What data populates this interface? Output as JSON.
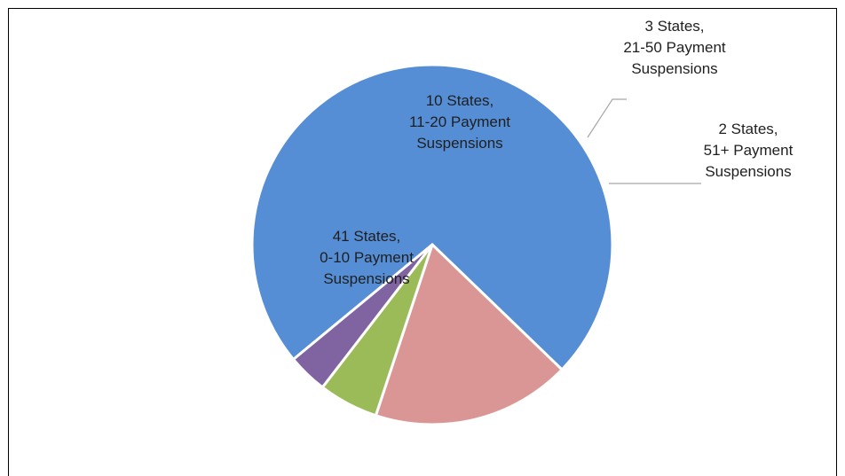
{
  "chart_data": {
    "type": "pie",
    "title": "",
    "slices": [
      {
        "label_lines": [
          "41 States,",
          "0-10 Payment",
          "Suspensions"
        ],
        "value": 41,
        "color": "#558ED5"
      },
      {
        "label_lines": [
          "10 States,",
          "11-20 Payment",
          "Suspensions"
        ],
        "value": 10,
        "color": "#D99694"
      },
      {
        "label_lines": [
          "3 States,",
          "21-50 Payment",
          "Suspensions"
        ],
        "value": 3,
        "color": "#9BBB59"
      },
      {
        "label_lines": [
          "2 States,",
          "51+ Payment",
          "Suspensions"
        ],
        "value": 2,
        "color": "#8064A2"
      }
    ],
    "legend": "none"
  }
}
